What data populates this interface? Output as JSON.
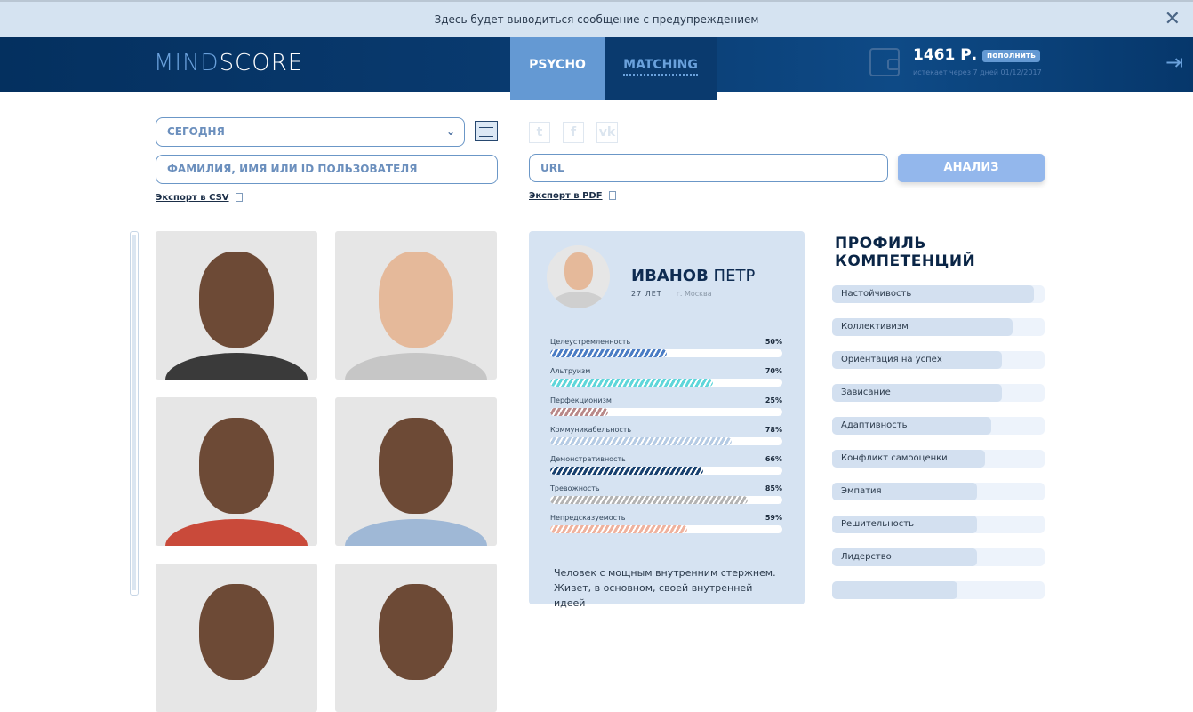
{
  "warning": {
    "text": "Здесь будет выводиться сообщение с предупреждением",
    "close_icon": "close-icon"
  },
  "header": {
    "logo_part1": "MIND",
    "logo_part2": "SCORE",
    "tabs": [
      {
        "label": "PSYCHO",
        "active": true
      },
      {
        "label": "MATCHING",
        "active": false
      }
    ],
    "balance": "1461 Р.",
    "topup_label": "пополнить",
    "expires": "истекает через 7 дней 01/12/2017"
  },
  "filters": {
    "period": "СЕГОДНЯ",
    "search_placeholder": "ФАМИЛИЯ, ИМЯ ИЛИ ID ПОЛЬЗОВАТЕЛЯ",
    "export_csv": "Экспорт в CSV"
  },
  "analysis": {
    "social": [
      "twitter-icon",
      "facebook-icon",
      "vk-icon"
    ],
    "url_placeholder": "URL",
    "analyze_label": "АНАЛИЗ",
    "export_pdf": "Экспорт в PDF"
  },
  "profile": {
    "last_name": "ИВАНОВ",
    "first_name": "ПЕТР",
    "age": "27 ЛЕТ",
    "city": "г. Москва",
    "traits": [
      {
        "label": "Целеустремленность",
        "value": "50%",
        "percent": 50,
        "color": "#4a7cc4"
      },
      {
        "label": "Альтруизм",
        "value": "70%",
        "percent": 70,
        "color": "#5fd6da"
      },
      {
        "label": "Перфекционизм",
        "value": "25%",
        "percent": 25,
        "color": "#b98888"
      },
      {
        "label": "Коммуникабельность",
        "value": "78%",
        "percent": 78,
        "color": "#b5cbe4"
      },
      {
        "label": "Демонстративность",
        "value": "66%",
        "percent": 66,
        "color": "#17406f"
      },
      {
        "label": "Тревожность",
        "value": "85%",
        "percent": 85,
        "color": "#b3b3b3"
      },
      {
        "label": "Непредсказуемость",
        "value": "59%",
        "percent": 59,
        "color": "#efb29e"
      }
    ],
    "description": "Человек с мощным внутренним стержнем. Живет, в основном, своей внутренней идеей"
  },
  "competencies": {
    "title": "ПРОФИЛЬ КОМПЕТЕНЦИЙ",
    "items": [
      {
        "label": "Настойчивость",
        "percent": 95
      },
      {
        "label": "Коллективизм",
        "percent": 85
      },
      {
        "label": "Ориентация на успех",
        "percent": 80
      },
      {
        "label": "Зависание",
        "percent": 80
      },
      {
        "label": "Адаптивность",
        "percent": 75
      },
      {
        "label": "Конфликт самооценки",
        "percent": 72
      },
      {
        "label": "Эмпатия",
        "percent": 68
      },
      {
        "label": "Решительность",
        "percent": 68
      },
      {
        "label": "Лидерство",
        "percent": 68
      }
    ]
  }
}
